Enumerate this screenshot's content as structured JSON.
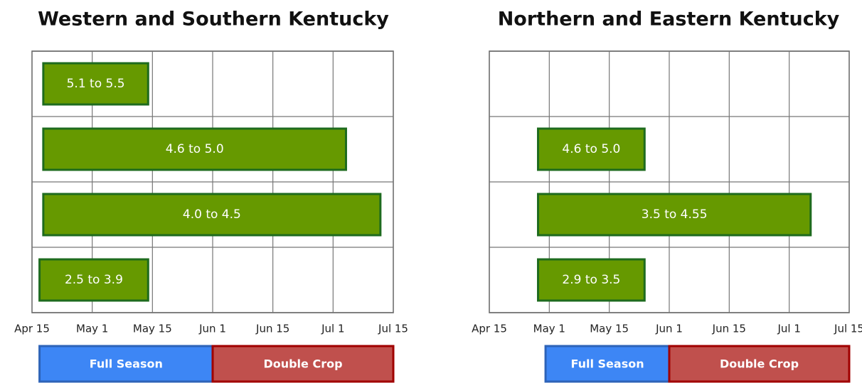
{
  "chart_data": [
    {
      "type": "range-bar",
      "title": "Western and Southern Kentucky",
      "categories": [
        "5.1 to 5.5",
        "4.6 to 5.0",
        "4.0 to 4.5",
        "2.5 to 3.9"
      ],
      "start": [
        108,
        108,
        108,
        107
      ],
      "end": [
        134,
        185,
        193,
        134
      ],
      "color": "#669900",
      "xlim": [
        105,
        196
      ],
      "xticks": [
        {
          "value": 105,
          "label": "Apr 15"
        },
        {
          "value": 121,
          "label": "May 1"
        },
        {
          "value": 135,
          "label": "May 15"
        },
        {
          "value": 152,
          "label": "Jun 1"
        },
        {
          "value": 166,
          "label": "Jun 15"
        },
        {
          "value": 182,
          "label": "Jul 1"
        },
        {
          "value": 196,
          "label": "Jul 15"
        }
      ],
      "grid": true,
      "periods": [
        {
          "name": "Full Season",
          "color": "#3d86f5",
          "start": 107,
          "end": 152
        },
        {
          "name": "Double Crop",
          "color": "#c0504d",
          "start": 152,
          "end": 196
        }
      ]
    },
    {
      "type": "range-bar",
      "title": "Northern and Eastern Kentucky",
      "categories": [
        null,
        "4.6 to 5.0",
        "3.5 to 4.55",
        "2.9 to 3.5"
      ],
      "start": [
        null,
        118,
        118,
        118
      ],
      "end": [
        null,
        145,
        187,
        145
      ],
      "color": "#669900",
      "xlim": [
        105,
        196
      ],
      "xticks": [
        {
          "value": 105,
          "label": "Apr 15"
        },
        {
          "value": 121,
          "label": "May 1"
        },
        {
          "value": 135,
          "label": "May 15"
        },
        {
          "value": 152,
          "label": "Jun 1"
        },
        {
          "value": 166,
          "label": "Jun 15"
        },
        {
          "value": 182,
          "label": "Jul 1"
        },
        {
          "value": 196,
          "label": "Jul 15"
        }
      ],
      "grid": true,
      "periods": [
        {
          "name": "Full Season",
          "color": "#3d86f5",
          "start": 120,
          "end": 152
        },
        {
          "name": "Double Crop",
          "color": "#c0504d",
          "start": 152,
          "end": 196
        }
      ]
    }
  ]
}
